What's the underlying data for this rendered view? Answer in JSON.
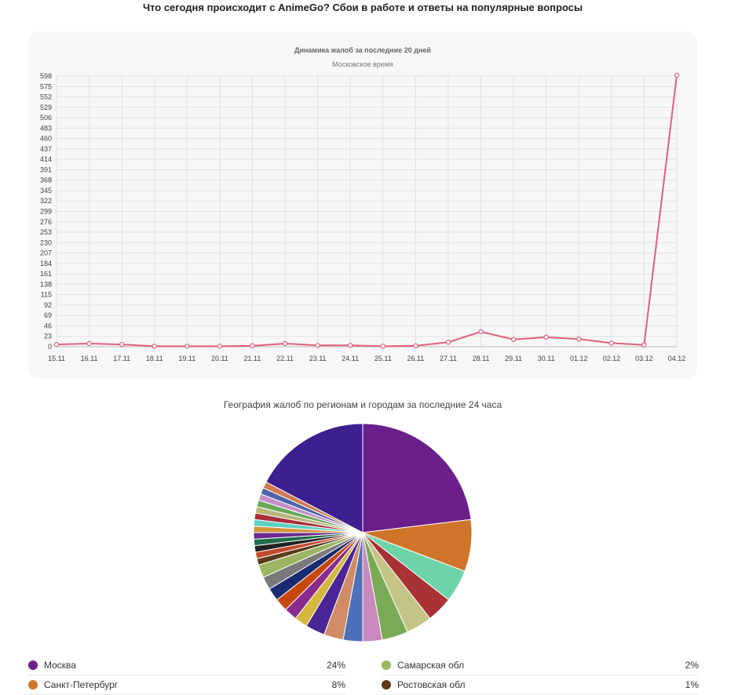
{
  "page_title": "Что сегодня происходит с AnimeGo? Сбои в работе и ответы на популярные вопросы",
  "chart_data": [
    {
      "type": "line",
      "title": "Динамика жалоб за последние 20 дней",
      "subtitle": "Московское время",
      "x": [
        "15.11",
        "16.11",
        "17.11",
        "18.11",
        "19.11",
        "20.11",
        "21.11",
        "22.11",
        "23.11",
        "24.11",
        "25.11",
        "26.11",
        "27.11",
        "28.11",
        "29.11",
        "30.11",
        "01.12",
        "02.12",
        "03.12",
        "04.12"
      ],
      "values": [
        5,
        7,
        5,
        1,
        1,
        1,
        2,
        7,
        3,
        3,
        1,
        2,
        10,
        33,
        16,
        21,
        17,
        8,
        4,
        600
      ],
      "y_ticks": [
        0,
        23,
        46,
        69,
        92,
        115,
        138,
        161,
        184,
        207,
        230,
        253,
        276,
        299,
        322,
        345,
        368,
        391,
        414,
        437,
        460,
        483,
        506,
        529,
        552,
        575,
        598
      ],
      "ylim": [
        0,
        598
      ],
      "grid": true,
      "colors": {
        "line": "#e0607a",
        "grid": "#e2e2e2"
      }
    },
    {
      "type": "pie",
      "title": "География жалоб по регионам и городам за последние 24 часа",
      "slices": [
        {
          "label": "Москва",
          "value": 24,
          "color": "#6a1f8a"
        },
        {
          "label": "Санкт-Петербург",
          "value": 8,
          "color": "#d0742a"
        },
        {
          "label": "",
          "value": 5,
          "color": "#6cd4a8"
        },
        {
          "label": "",
          "value": 4,
          "color": "#a93234"
        },
        {
          "label": "",
          "value": 4,
          "color": "#c4c486"
        },
        {
          "label": "",
          "value": 4,
          "color": "#79ab56"
        },
        {
          "label": "",
          "value": 3,
          "color": "#c98abf"
        },
        {
          "label": "",
          "value": 3,
          "color": "#4f6fb6"
        },
        {
          "label": "",
          "value": 3,
          "color": "#d08c66"
        },
        {
          "label": "",
          "value": 3,
          "color": "#4b2596"
        },
        {
          "label": "",
          "value": 2,
          "color": "#d4b83e"
        },
        {
          "label": "",
          "value": 2,
          "color": "#8a2b8e"
        },
        {
          "label": "",
          "value": 2,
          "color": "#c8480c"
        },
        {
          "label": "",
          "value": 2,
          "color": "#1a2a73"
        },
        {
          "label": "",
          "value": 2,
          "color": "#7a7a7a"
        },
        {
          "label": "Самарская обл",
          "value": 2,
          "color": "#9cb562"
        },
        {
          "label": "Ростовская обл",
          "value": 1,
          "color": "#5b3b1b"
        },
        {
          "label": "",
          "value": 1,
          "color": "#c44a2e"
        },
        {
          "label": "",
          "value": 1,
          "color": "#222222"
        },
        {
          "label": "",
          "value": 1,
          "color": "#1f6b4a"
        },
        {
          "label": "",
          "value": 1,
          "color": "#6b2a8e"
        },
        {
          "label": "",
          "value": 1,
          "color": "#d4943a"
        },
        {
          "label": "",
          "value": 1,
          "color": "#5fcfc0"
        },
        {
          "label": "",
          "value": 1,
          "color": "#a82e3a"
        },
        {
          "label": "",
          "value": 1,
          "color": "#b7b77a"
        },
        {
          "label": "",
          "value": 1,
          "color": "#6aa85a"
        },
        {
          "label": "",
          "value": 1,
          "color": "#c490c8"
        },
        {
          "label": "",
          "value": 1,
          "color": "#4c64aa"
        },
        {
          "label": "",
          "value": 1,
          "color": "#d07a52"
        },
        {
          "label": "",
          "value": 18,
          "color": "#3d1f90"
        }
      ]
    }
  ],
  "legend": {
    "left": [
      {
        "label": "Москва",
        "value": "24%",
        "color": "#6a1f8a"
      },
      {
        "label": "Санкт-Петербург",
        "value": "8%",
        "color": "#d0742a"
      }
    ],
    "right": [
      {
        "label": "Самарская обл",
        "value": "2%",
        "color": "#9cb562"
      },
      {
        "label": "Ростовская обл",
        "value": "1%",
        "color": "#5b3b1b"
      }
    ]
  }
}
